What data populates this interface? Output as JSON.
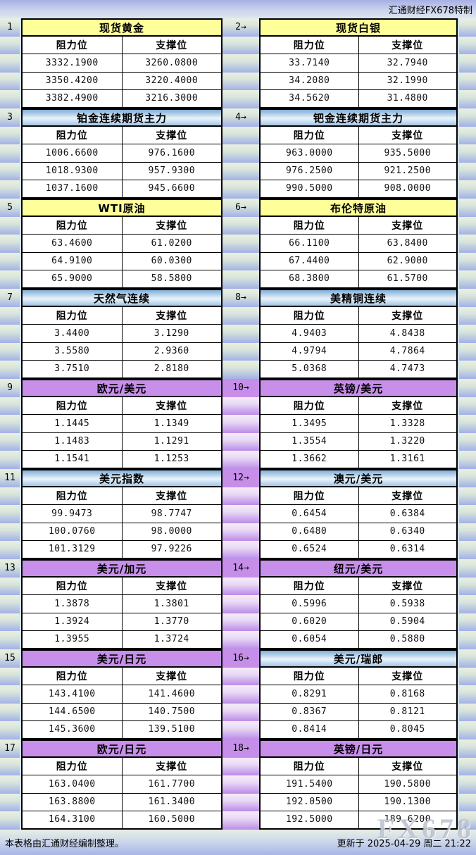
{
  "header": {
    "brand": "汇通财经FX678特制"
  },
  "col_headers": {
    "resistance": "阻力位",
    "support": "支撑位"
  },
  "rows": [
    {
      "gutter_style": "blue",
      "left": {
        "label": "1",
        "title": "现货黄金",
        "style": "yellow",
        "resistance": [
          "3332.1900",
          "3350.4200",
          "3382.4900"
        ],
        "support": [
          "3260.0800",
          "3220.4000",
          "3216.3000"
        ]
      },
      "right": {
        "label": "2→",
        "title": "现货白银",
        "style": "yellow",
        "resistance": [
          "33.7140",
          "34.2080",
          "34.5620"
        ],
        "support": [
          "32.7940",
          "32.1990",
          "31.4800"
        ]
      }
    },
    {
      "gutter_style": "blue",
      "left": {
        "label": "3",
        "title": "铂金连续期货主力",
        "style": "blue",
        "resistance": [
          "1006.6600",
          "1018.9300",
          "1037.1600"
        ],
        "support": [
          "976.1600",
          "957.9300",
          "945.6600"
        ]
      },
      "right": {
        "label": "4→",
        "title": "钯金连续期货主力",
        "style": "blue",
        "resistance": [
          "963.0000",
          "976.2500",
          "990.5000"
        ],
        "support": [
          "935.5000",
          "921.2500",
          "908.0000"
        ]
      }
    },
    {
      "gutter_style": "blue",
      "left": {
        "label": "5",
        "title": "WTI原油",
        "style": "yellow",
        "resistance": [
          "63.4600",
          "64.9100",
          "65.9000"
        ],
        "support": [
          "61.0200",
          "60.0300",
          "58.5800"
        ]
      },
      "right": {
        "label": "6→",
        "title": "布伦特原油",
        "style": "yellow",
        "resistance": [
          "66.1100",
          "67.4400",
          "68.3800"
        ],
        "support": [
          "63.8400",
          "62.9000",
          "61.5700"
        ]
      }
    },
    {
      "gutter_style": "blue",
      "left": {
        "label": "7",
        "title": "天然气连续",
        "style": "blue",
        "resistance": [
          "3.4400",
          "3.5580",
          "3.7510"
        ],
        "support": [
          "3.1290",
          "2.9360",
          "2.8180"
        ]
      },
      "right": {
        "label": "8→",
        "title": "美精铜连续",
        "style": "blue",
        "resistance": [
          "4.9403",
          "4.9794",
          "5.0368"
        ],
        "support": [
          "4.8438",
          "4.7864",
          "4.7473"
        ]
      }
    },
    {
      "gutter_style": "purple",
      "left": {
        "label": "9",
        "title": "欧元/美元",
        "style": "purple",
        "resistance": [
          "1.1445",
          "1.1483",
          "1.1541"
        ],
        "support": [
          "1.1349",
          "1.1291",
          "1.1253"
        ]
      },
      "right": {
        "label": "10→",
        "title": "英镑/美元",
        "style": "purple",
        "resistance": [
          "1.3495",
          "1.3554",
          "1.3662"
        ],
        "support": [
          "1.3328",
          "1.3220",
          "1.3161"
        ]
      }
    },
    {
      "gutter_style": "purple",
      "left": {
        "label": "11",
        "title": "美元指数",
        "style": "blue",
        "resistance": [
          "99.9473",
          "100.0760",
          "101.3129"
        ],
        "support": [
          "98.7747",
          "98.0000",
          "97.9226"
        ]
      },
      "right": {
        "label": "12→",
        "title": "澳元/美元",
        "style": "blue",
        "resistance": [
          "0.6454",
          "0.6480",
          "0.6524"
        ],
        "support": [
          "0.6384",
          "0.6340",
          "0.6314"
        ]
      }
    },
    {
      "gutter_style": "purple",
      "left": {
        "label": "13",
        "title": "美元/加元",
        "style": "purple",
        "resistance": [
          "1.3878",
          "1.3924",
          "1.3955"
        ],
        "support": [
          "1.3801",
          "1.3770",
          "1.3724"
        ]
      },
      "right": {
        "label": "14→",
        "title": "纽元/美元",
        "style": "purple",
        "resistance": [
          "0.5996",
          "0.6020",
          "0.6054"
        ],
        "support": [
          "0.5938",
          "0.5904",
          "0.5880"
        ]
      }
    },
    {
      "gutter_style": "purple",
      "left": {
        "label": "15",
        "title": "美元/日元",
        "style": "purple",
        "resistance": [
          "143.4100",
          "144.6500",
          "145.3600"
        ],
        "support": [
          "141.4600",
          "140.7500",
          "139.5100"
        ]
      },
      "right": {
        "label": "16→",
        "title": "美元/瑞郎",
        "style": "blue",
        "resistance": [
          "0.8291",
          "0.8367",
          "0.8414"
        ],
        "support": [
          "0.8168",
          "0.8121",
          "0.8045"
        ]
      }
    },
    {
      "gutter_style": "purple",
      "left": {
        "label": "17",
        "title": "欧元/日元",
        "style": "purple",
        "resistance": [
          "163.0400",
          "163.8800",
          "164.3100"
        ],
        "support": [
          "161.7700",
          "161.3400",
          "160.5000"
        ]
      },
      "right": {
        "label": "18→",
        "title": "英镑/日元",
        "style": "purple",
        "resistance": [
          "191.5400",
          "192.0500",
          "192.5000"
        ],
        "support": [
          "190.5800",
          "190.1300",
          "189.6200"
        ]
      }
    }
  ],
  "footer": {
    "note": "本表格由汇通财经编制整理。",
    "updated": "更新于 2025-04-29 周二 21:22",
    "watermark": "FX678"
  },
  "colors": {
    "page_bg": "#d3e3ee",
    "yellow_header": "#ffff99",
    "blue_header_top": "#7fadd8",
    "blue_header_light": "#eaf4fb",
    "purple_header": "#c78fea",
    "band_blue_bottom": "#a2b1e7",
    "band_purple_bottom": "#bb8ce8",
    "cell_border": "#000000"
  }
}
